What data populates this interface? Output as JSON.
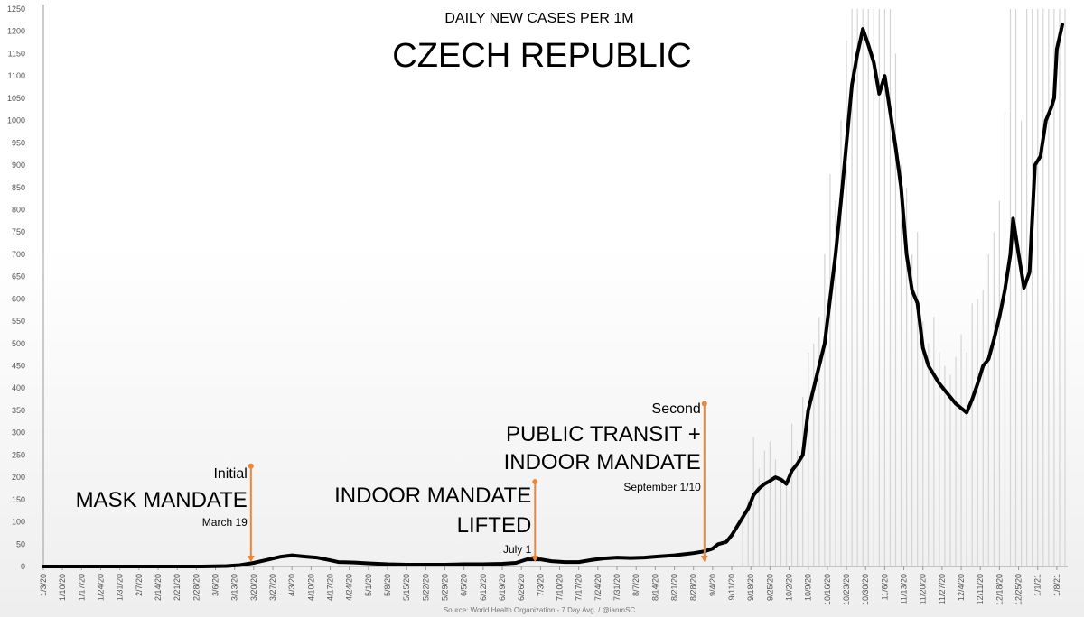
{
  "chart_data": {
    "type": "line",
    "title": "CZECH REPUBLIC",
    "subtitle": "DAILY NEW CASES PER 1M",
    "source": "Source: World Health Organization - 7 Day Avg. / @ianmSC",
    "ylim": [
      0,
      1250
    ],
    "yticks": [
      0,
      50,
      100,
      150,
      200,
      250,
      300,
      350,
      400,
      450,
      500,
      550,
      600,
      650,
      700,
      750,
      800,
      850,
      900,
      950,
      1000,
      1050,
      1100,
      1150,
      1200,
      1250
    ],
    "xlim": [
      "2020-01-03",
      "2021-01-12"
    ],
    "xtick_labels": [
      "1/3/20",
      "1/10/20",
      "1/17/20",
      "1/24/20",
      "1/31/20",
      "2/7/20",
      "2/14/20",
      "2/21/20",
      "2/28/20",
      "3/6/20",
      "3/13/20",
      "3/20/20",
      "3/27/20",
      "4/3/20",
      "4/10/20",
      "4/17/20",
      "4/24/20",
      "5/1/20",
      "5/8/20",
      "5/15/20",
      "5/22/20",
      "5/29/20",
      "6/5/20",
      "6/12/20",
      "6/19/20",
      "6/26/20",
      "7/3/20",
      "7/10/20",
      "7/17/20",
      "7/24/20",
      "7/31/20",
      "8/7/20",
      "8/14/20",
      "8/21/20",
      "8/28/20",
      "9/4/20",
      "9/11/20",
      "9/18/20",
      "9/25/20",
      "10/2/20",
      "10/9/20",
      "10/16/20",
      "10/23/20",
      "10/30/20",
      "11/6/20",
      "11/13/20",
      "11/20/20",
      "11/27/20",
      "12/4/20",
      "12/11/20",
      "12/18/20",
      "12/25/20",
      "1/1/21",
      "1/8/21"
    ],
    "series": [
      {
        "color": "#000000",
        "points": [
          [
            "2020-01-03",
            0
          ],
          [
            "2020-03-01",
            0
          ],
          [
            "2020-03-10",
            1
          ],
          [
            "2020-03-15",
            3
          ],
          [
            "2020-03-20",
            8
          ],
          [
            "2020-03-25",
            15
          ],
          [
            "2020-03-30",
            22
          ],
          [
            "2020-04-03",
            25
          ],
          [
            "2020-04-08",
            22
          ],
          [
            "2020-04-12",
            20
          ],
          [
            "2020-04-17",
            14
          ],
          [
            "2020-04-20",
            10
          ],
          [
            "2020-04-26",
            9
          ],
          [
            "2020-05-01",
            7
          ],
          [
            "2020-05-08",
            5
          ],
          [
            "2020-05-15",
            4
          ],
          [
            "2020-05-22",
            4
          ],
          [
            "2020-05-29",
            4
          ],
          [
            "2020-06-05",
            5
          ],
          [
            "2020-06-12",
            5
          ],
          [
            "2020-06-19",
            6
          ],
          [
            "2020-06-24",
            8
          ],
          [
            "2020-06-28",
            16
          ],
          [
            "2020-07-03",
            16
          ],
          [
            "2020-07-07",
            12
          ],
          [
            "2020-07-12",
            10
          ],
          [
            "2020-07-17",
            10
          ],
          [
            "2020-07-22",
            15
          ],
          [
            "2020-07-26",
            18
          ],
          [
            "2020-07-31",
            20
          ],
          [
            "2020-08-05",
            19
          ],
          [
            "2020-08-10",
            20
          ],
          [
            "2020-08-14",
            22
          ],
          [
            "2020-08-21",
            25
          ],
          [
            "2020-08-28",
            30
          ],
          [
            "2020-09-01",
            34
          ],
          [
            "2020-09-04",
            40
          ],
          [
            "2020-09-06",
            50
          ],
          [
            "2020-09-09",
            55
          ],
          [
            "2020-09-11",
            70
          ],
          [
            "2020-09-13",
            90
          ],
          [
            "2020-09-15",
            110
          ],
          [
            "2020-09-17",
            130
          ],
          [
            "2020-09-19",
            160
          ],
          [
            "2020-09-21",
            175
          ],
          [
            "2020-09-23",
            185
          ],
          [
            "2020-09-25",
            192
          ],
          [
            "2020-09-27",
            200
          ],
          [
            "2020-09-29",
            195
          ],
          [
            "2020-10-01",
            185
          ],
          [
            "2020-10-03",
            215
          ],
          [
            "2020-10-05",
            230
          ],
          [
            "2020-10-07",
            250
          ],
          [
            "2020-10-09",
            350
          ],
          [
            "2020-10-11",
            400
          ],
          [
            "2020-10-13",
            450
          ],
          [
            "2020-10-15",
            500
          ],
          [
            "2020-10-17",
            600
          ],
          [
            "2020-10-19",
            700
          ],
          [
            "2020-10-21",
            820
          ],
          [
            "2020-10-23",
            950
          ],
          [
            "2020-10-25",
            1080
          ],
          [
            "2020-10-27",
            1150
          ],
          [
            "2020-10-29",
            1205
          ],
          [
            "2020-10-31",
            1170
          ],
          [
            "2020-11-02",
            1130
          ],
          [
            "2020-11-04",
            1060
          ],
          [
            "2020-11-06",
            1100
          ],
          [
            "2020-11-08",
            1020
          ],
          [
            "2020-11-10",
            940
          ],
          [
            "2020-11-12",
            850
          ],
          [
            "2020-11-14",
            700
          ],
          [
            "2020-11-16",
            620
          ],
          [
            "2020-11-18",
            590
          ],
          [
            "2020-11-20",
            490
          ],
          [
            "2020-11-22",
            450
          ],
          [
            "2020-11-24",
            430
          ],
          [
            "2020-11-26",
            410
          ],
          [
            "2020-11-28",
            395
          ],
          [
            "2020-11-30",
            380
          ],
          [
            "2020-12-02",
            365
          ],
          [
            "2020-12-04",
            355
          ],
          [
            "2020-12-06",
            345
          ],
          [
            "2020-12-08",
            375
          ],
          [
            "2020-12-10",
            410
          ],
          [
            "2020-12-12",
            450
          ],
          [
            "2020-12-14",
            465
          ],
          [
            "2020-12-16",
            510
          ],
          [
            "2020-12-18",
            560
          ],
          [
            "2020-12-20",
            620
          ],
          [
            "2020-12-22",
            700
          ],
          [
            "2020-12-23",
            780
          ],
          [
            "2020-12-25",
            700
          ],
          [
            "2020-12-27",
            625
          ],
          [
            "2020-12-29",
            660
          ],
          [
            "2020-12-31",
            900
          ],
          [
            "2021-01-02",
            920
          ],
          [
            "2021-01-04",
            1000
          ],
          [
            "2021-01-06",
            1030
          ],
          [
            "2021-01-07",
            1050
          ],
          [
            "2021-01-08",
            1160
          ],
          [
            "2021-01-10",
            1215
          ]
        ]
      }
    ],
    "daily_bars": [
      [
        "2020-09-15",
        120
      ],
      [
        "2020-09-17",
        150
      ],
      [
        "2020-09-19",
        290
      ],
      [
        "2020-09-21",
        220
      ],
      [
        "2020-09-23",
        260
      ],
      [
        "2020-09-25",
        280
      ],
      [
        "2020-09-27",
        240
      ],
      [
        "2020-09-29",
        200
      ],
      [
        "2020-10-01",
        190
      ],
      [
        "2020-10-03",
        320
      ],
      [
        "2020-10-05",
        260
      ],
      [
        "2020-10-07",
        380
      ],
      [
        "2020-10-09",
        480
      ],
      [
        "2020-10-11",
        500
      ],
      [
        "2020-10-13",
        560
      ],
      [
        "2020-10-15",
        700
      ],
      [
        "2020-10-17",
        880
      ],
      [
        "2020-10-19",
        820
      ],
      [
        "2020-10-21",
        1000
      ],
      [
        "2020-10-23",
        1180
      ],
      [
        "2020-10-25",
        1250
      ],
      [
        "2020-10-27",
        1250
      ],
      [
        "2020-10-29",
        1250
      ],
      [
        "2020-10-31",
        1250
      ],
      [
        "2020-11-02",
        1250
      ],
      [
        "2020-11-04",
        1250
      ],
      [
        "2020-11-06",
        1250
      ],
      [
        "2020-11-08",
        1250
      ],
      [
        "2020-11-10",
        1150
      ],
      [
        "2020-11-12",
        900
      ],
      [
        "2020-11-14",
        850
      ],
      [
        "2020-11-16",
        700
      ],
      [
        "2020-11-18",
        750
      ],
      [
        "2020-11-20",
        550
      ],
      [
        "2020-11-22",
        500
      ],
      [
        "2020-11-24",
        560
      ],
      [
        "2020-11-26",
        480
      ],
      [
        "2020-11-28",
        450
      ],
      [
        "2020-11-30",
        430
      ],
      [
        "2020-12-02",
        470
      ],
      [
        "2020-12-04",
        520
      ],
      [
        "2020-12-06",
        480
      ],
      [
        "2020-12-08",
        590
      ],
      [
        "2020-12-10",
        600
      ],
      [
        "2020-12-12",
        620
      ],
      [
        "2020-12-14",
        700
      ],
      [
        "2020-12-16",
        750
      ],
      [
        "2020-12-18",
        820
      ],
      [
        "2020-12-20",
        1020
      ],
      [
        "2020-12-22",
        1250
      ],
      [
        "2020-12-24",
        1250
      ],
      [
        "2020-12-26",
        1000
      ],
      [
        "2020-12-28",
        1250
      ],
      [
        "2020-12-30",
        1250
      ],
      [
        "2021-01-01",
        1250
      ],
      [
        "2021-01-03",
        1250
      ],
      [
        "2021-01-05",
        1250
      ],
      [
        "2021-01-07",
        1250
      ],
      [
        "2021-01-09",
        1250
      ],
      [
        "2021-01-11",
        1250
      ]
    ],
    "annotations": [
      {
        "date": "2020-03-19",
        "marker_value": 225,
        "lines": [
          "Initial",
          "MASK MANDATE",
          "March 19"
        ]
      },
      {
        "date": "2020-07-01",
        "marker_value": 190,
        "lines": [
          "INDOOR MANDATE",
          "LIFTED",
          "July 1"
        ]
      },
      {
        "date": "2020-09-01",
        "marker_value": 365,
        "lines": [
          "Second",
          "PUBLIC TRANSIT +",
          "INDOOR MANDATE",
          "September 1/10"
        ]
      }
    ],
    "annotation_color": "#E8883A",
    "grid": false,
    "legend": "none"
  }
}
